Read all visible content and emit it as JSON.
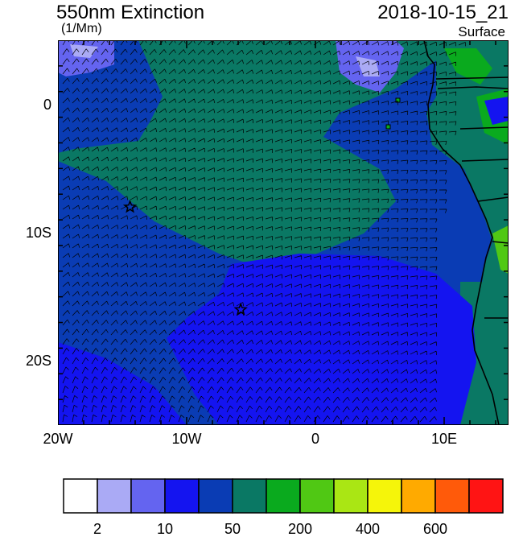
{
  "title": "550nm Extinction",
  "units": "(1/Mm)",
  "datetime": "2018-10-15_21",
  "level": "Surface",
  "axes": {
    "x_ticks": [
      {
        "label": "20W",
        "lon": -20
      },
      {
        "label": "10W",
        "lon": -10
      },
      {
        "label": "0",
        "lon": 0
      },
      {
        "label": "10E",
        "lon": 10
      }
    ],
    "y_ticks": [
      {
        "label": "0",
        "lat": 0
      },
      {
        "label": "10S",
        "lat": -10
      },
      {
        "label": "20S",
        "lat": -20
      }
    ],
    "lon_range": [
      -20,
      15
    ],
    "lat_range": [
      -25,
      5
    ]
  },
  "markers": [
    {
      "symbol": "star",
      "lon": -14.4,
      "lat": -8.0
    },
    {
      "symbol": "star",
      "lon": -5.8,
      "lat": -16.0
    }
  ],
  "colorbar": {
    "colors": [
      "#ffffff",
      "#aaaaf5",
      "#6464f0",
      "#1414f0",
      "#0a3cb4",
      "#0a7864",
      "#0aaa1e",
      "#50c814",
      "#aae614",
      "#f5f50a",
      "#ffaa00",
      "#ff5a0a",
      "#ff1414"
    ],
    "labels": [
      {
        "text": "2",
        "after_box": 0
      },
      {
        "text": "10",
        "after_box": 2
      },
      {
        "text": "50",
        "after_box": 4
      },
      {
        "text": "200",
        "after_box": 6
      },
      {
        "text": "400",
        "after_box": 8
      },
      {
        "text": "600",
        "after_box": 10
      }
    ]
  }
}
